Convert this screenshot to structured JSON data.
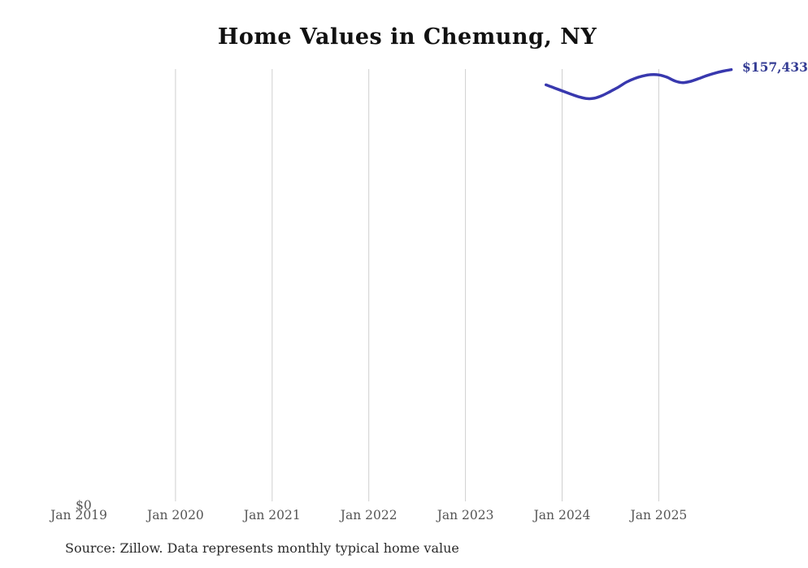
{
  "title": "Home Values in Chemung, NY",
  "end_label": "$157,433",
  "y_axis": {
    "zero_label": "$0"
  },
  "x_axis": {
    "tick_labels": [
      "Jan 2019",
      "Jan 2020",
      "Jan 2021",
      "Jan 2022",
      "Jan 2023",
      "Jan 2024",
      "Jan 2025"
    ]
  },
  "source_note": "Source: Zillow. Data represents monthly typical home value",
  "colors": {
    "line": "#3838ae",
    "end_label": "#343c94",
    "gridline": "#cfcfcf",
    "axis_text": "#555555",
    "title_text": "#111111",
    "source_text": "#2a2a2a"
  },
  "chart_data": {
    "type": "line",
    "title": "Home Values in Chemung, NY",
    "series_name": "Monthly typical home value",
    "x": [
      "2023-11",
      "2023-12",
      "2024-01",
      "2024-02",
      "2024-03",
      "2024-04",
      "2024-05",
      "2024-06",
      "2024-07",
      "2024-08",
      "2024-09",
      "2024-10",
      "2024-11",
      "2024-12",
      "2025-01",
      "2025-02",
      "2025-03",
      "2025-04",
      "2025-05",
      "2025-06",
      "2025-07",
      "2025-08",
      "2025-09",
      "2025-10"
    ],
    "values": [
      151900,
      150800,
      149700,
      148600,
      147600,
      146900,
      147000,
      148000,
      149500,
      151100,
      152900,
      154200,
      155100,
      155600,
      155500,
      154700,
      153300,
      152700,
      153200,
      154200,
      155300,
      156200,
      156900,
      157433
    ],
    "latest_value_label": "$157,433",
    "xlabel": "",
    "ylabel": "",
    "x_tick_labels": [
      "Jan 2019",
      "Jan 2020",
      "Jan 2021",
      "Jan 2022",
      "Jan 2023",
      "Jan 2024",
      "Jan 2025"
    ],
    "x_range_shown": [
      "Jan 2019",
      "Oct 2025"
    ],
    "ylim": [
      0,
      157650
    ],
    "grid": "vertical-year-gridlines-only",
    "gridline_years": [
      2020,
      2021,
      2022,
      2023,
      2024,
      2025
    ],
    "legend": "none"
  }
}
